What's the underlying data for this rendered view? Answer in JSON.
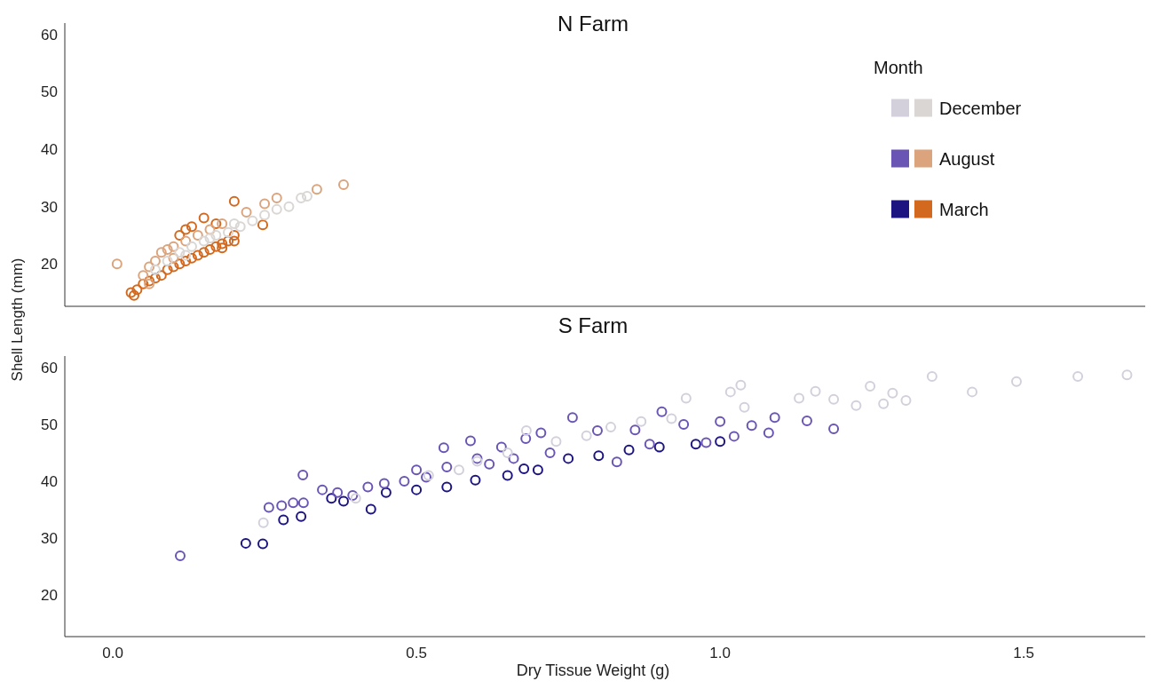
{
  "chart_data": [
    {
      "type": "scatter",
      "title": "N Farm",
      "ylabel": "Shell Length (mm)",
      "xlim": [
        -0.079,
        1.7
      ],
      "ylim": [
        12.6,
        62
      ],
      "yticks": [
        20,
        30,
        40,
        50,
        60
      ],
      "tick_labels": "y",
      "marker": "circle",
      "legend": "top right",
      "legend_title": "Month",
      "series": [
        {
          "name": "March",
          "color": "#d2691e",
          "x": [
            0.03,
            0.035,
            0.04,
            0.05,
            0.06,
            0.07,
            0.08,
            0.09,
            0.1,
            0.11,
            0.12,
            0.13,
            0.14,
            0.15,
            0.16,
            0.17,
            0.18,
            0.19,
            0.2,
            0.247,
            0.2,
            0.15,
            0.12,
            0.11,
            0.13,
            0.17,
            0.2,
            0.18
          ],
          "values": [
            15,
            14.5,
            15.5,
            16.5,
            17,
            17.5,
            18,
            19,
            19.5,
            20,
            20.5,
            21,
            21.5,
            22,
            22.5,
            23,
            23.5,
            24,
            25,
            26.8,
            30.9,
            28,
            26,
            25,
            26.5,
            27,
            24,
            22.8
          ]
        },
        {
          "name": "August",
          "color": "#dba47d",
          "x": [
            0.007,
            0.05,
            0.06,
            0.07,
            0.08,
            0.09,
            0.1,
            0.12,
            0.14,
            0.16,
            0.18,
            0.22,
            0.25,
            0.27,
            0.336,
            0.38,
            0.06,
            0.1
          ],
          "values": [
            20,
            18,
            19.5,
            20.5,
            22,
            22.5,
            23,
            24,
            25,
            26,
            27,
            29,
            30.5,
            31.5,
            33,
            33.8,
            16.5,
            21
          ]
        },
        {
          "name": "December",
          "color": "#d9d6d4",
          "x": [
            0.07,
            0.09,
            0.11,
            0.13,
            0.15,
            0.17,
            0.19,
            0.21,
            0.23,
            0.25,
            0.27,
            0.29,
            0.31,
            0.32,
            0.12,
            0.16,
            0.2
          ],
          "values": [
            19,
            20.5,
            22,
            23,
            24,
            25,
            25.5,
            26.5,
            27.5,
            28.5,
            29.5,
            30,
            31.5,
            31.8,
            21.5,
            24.5,
            27
          ]
        }
      ]
    },
    {
      "type": "scatter",
      "title": "S Farm",
      "xlabel": "Dry Tissue Weight (g)",
      "xlim": [
        -0.079,
        1.7
      ],
      "xticks": [
        {
          "value": 0,
          "label": "0.0"
        },
        0.5,
        {
          "value": 1,
          "label": "1.0"
        },
        1.5
      ],
      "ylim": [
        12.7,
        62
      ],
      "yticks": [
        20,
        30,
        40,
        50,
        60
      ],
      "marker": "circle",
      "series": [
        {
          "color": "#1c1480",
          "x": [
            0.219,
            0.247,
            0.281,
            0.31,
            0.425,
            0.36,
            0.38,
            0.45,
            0.5,
            0.55,
            0.597,
            0.65,
            0.7,
            0.677,
            0.75,
            0.8,
            0.85,
            0.9,
            0.96,
            1.0
          ],
          "values": [
            29.1,
            29.0,
            33.2,
            33.8,
            35.1,
            37,
            36.5,
            38,
            38.5,
            39,
            40.2,
            41,
            42,
            42.2,
            44,
            44.5,
            45.5,
            46,
            46.5,
            47
          ]
        },
        {
          "color": "#6a55b5",
          "x": [
            0.111,
            0.257,
            0.278,
            0.297,
            0.314,
            0.313,
            0.345,
            0.37,
            0.395,
            0.42,
            0.447,
            0.48,
            0.516,
            0.545,
            0.589,
            0.62,
            0.66,
            0.72,
            0.757,
            0.798,
            0.705,
            0.83,
            0.884,
            0.904,
            0.977,
            1.023,
            1.052,
            1.08,
            1.09,
            1.143,
            1.187,
            0.86,
            0.94,
            1.0,
            0.5,
            0.55,
            0.6,
            0.64,
            0.68
          ],
          "values": [
            26.9,
            35.4,
            35.7,
            36.2,
            36.2,
            41.1,
            38.5,
            38,
            37.5,
            39,
            39.6,
            40,
            40.7,
            45.9,
            47.1,
            43,
            44,
            45,
            51.2,
            48.9,
            48.5,
            43.4,
            46.5,
            52.2,
            46.8,
            47.9,
            49.8,
            48.5,
            51.2,
            50.6,
            49.2,
            49,
            50,
            50.5,
            42,
            42.5,
            44,
            46,
            47.5
          ]
        },
        {
          "color": "#d3d0dc",
          "x": [
            0.248,
            0.4,
            0.52,
            0.57,
            0.6,
            0.65,
            0.681,
            0.73,
            0.78,
            0.82,
            0.87,
            0.92,
            0.944,
            1.017,
            1.034,
            1.04,
            1.13,
            1.157,
            1.187,
            1.224,
            1.247,
            1.269,
            1.284,
            1.306,
            1.349,
            1.415,
            1.488,
            1.589,
            1.67
          ],
          "values": [
            32.7,
            37,
            41,
            42,
            43.5,
            45,
            48.9,
            47,
            48,
            49.5,
            50.5,
            51,
            54.6,
            55.7,
            56.9,
            53,
            54.6,
            55.8,
            54.4,
            53.3,
            56.7,
            53.6,
            55.5,
            54.2,
            58.4,
            55.7,
            57.5,
            58.4,
            58.7
          ]
        }
      ]
    }
  ]
}
